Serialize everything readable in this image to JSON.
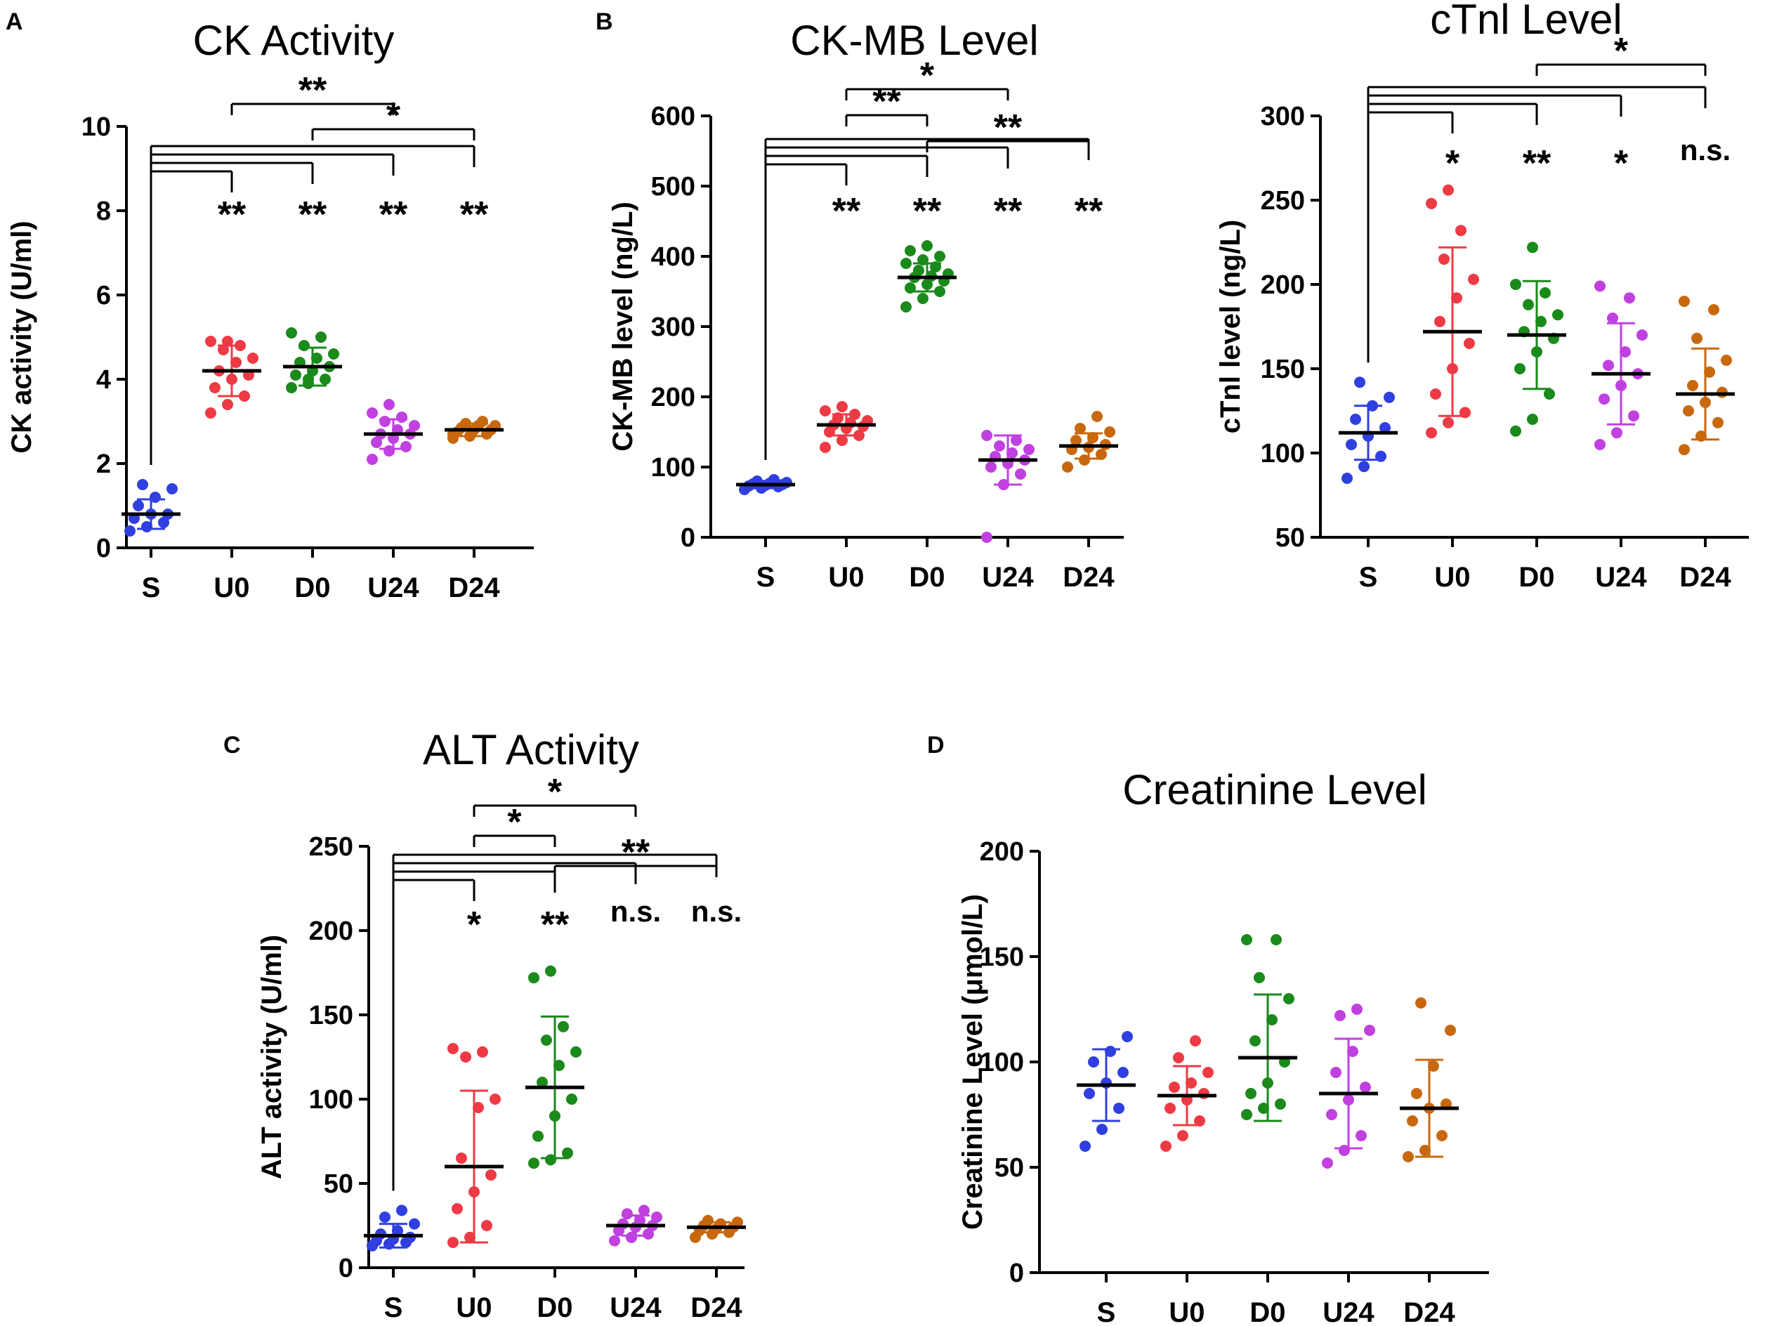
{
  "panel_labels": {
    "A": "A",
    "B": "B",
    "C": "C",
    "D": "D"
  },
  "colors": {
    "S": "#2f3fe0",
    "U0": "#ee3a44",
    "D0": "#1a8a1a",
    "U24": "#c040e0",
    "D24": "#c8680e",
    "axis": "#000000"
  },
  "chart_data": [
    {
      "id": "ck",
      "type": "scatter",
      "title": "CK Activity",
      "xlabel": "",
      "ylabel": "CK activity (U/ml)",
      "ylim": [
        0,
        10
      ],
      "yticks": [
        "0",
        "2",
        "4",
        "6",
        "8",
        "10"
      ],
      "categories": [
        "S",
        "U0",
        "D0",
        "U24",
        "D24"
      ],
      "series": [
        {
          "name": "S",
          "mean": 0.8,
          "sd": 0.35,
          "points": [
            0.4,
            0.5,
            0.6,
            0.7,
            0.8,
            0.8,
            1.0,
            1.2,
            1.4,
            1.5
          ]
        },
        {
          "name": "U0",
          "mean": 4.2,
          "sd": 0.6,
          "points": [
            3.2,
            3.4,
            3.6,
            3.8,
            4.0,
            4.1,
            4.2,
            4.4,
            4.5,
            4.7,
            4.8,
            4.9,
            4.9
          ]
        },
        {
          "name": "D0",
          "mean": 4.3,
          "sd": 0.45,
          "points": [
            3.8,
            3.9,
            4.0,
            4.1,
            4.2,
            4.3,
            4.4,
            4.5,
            4.6,
            4.8,
            5.0,
            5.1,
            4.0
          ]
        },
        {
          "name": "U24",
          "mean": 2.7,
          "sd": 0.35,
          "points": [
            2.1,
            2.3,
            2.4,
            2.5,
            2.6,
            2.7,
            2.7,
            2.8,
            2.9,
            3.0,
            3.1,
            3.2,
            3.4
          ]
        },
        {
          "name": "D24",
          "mean": 2.8,
          "sd": 0.15,
          "points": [
            2.6,
            2.65,
            2.7,
            2.75,
            2.8,
            2.8,
            2.85,
            2.9,
            2.9,
            2.95,
            3.0,
            2.7
          ]
        }
      ],
      "annotations": {
        "vs_S": [
          "**",
          "**",
          "**",
          "**"
        ],
        "brackets": [
          {
            "from": "U0",
            "to": "U24",
            "label": "**"
          },
          {
            "from": "D0",
            "to": "D24",
            "label": "*"
          }
        ]
      }
    },
    {
      "id": "ckmb",
      "type": "scatter",
      "title": "CK-MB Level",
      "xlabel": "",
      "ylabel": "CK-MB level (ng/L)",
      "ylim": [
        0,
        600
      ],
      "yticks": [
        "0",
        "100",
        "200",
        "300",
        "400",
        "500",
        "600"
      ],
      "categories": [
        "S",
        "U0",
        "D0",
        "U24",
        "D24"
      ],
      "series": [
        {
          "name": "S",
          "mean": 75,
          "sd": 5,
          "points": [
            68,
            70,
            72,
            73,
            74,
            75,
            76,
            77,
            78,
            80,
            82
          ]
        },
        {
          "name": "U0",
          "mean": 160,
          "sd": 15,
          "points": [
            128,
            138,
            145,
            150,
            155,
            158,
            160,
            163,
            166,
            170,
            175,
            180,
            186
          ]
        },
        {
          "name": "D0",
          "mean": 370,
          "sd": 20,
          "points": [
            328,
            340,
            350,
            355,
            360,
            365,
            370,
            372,
            375,
            380,
            385,
            390,
            395,
            400,
            408,
            415
          ]
        },
        {
          "name": "U24",
          "mean": 110,
          "sd": 35,
          "points": [
            0,
            75,
            90,
            100,
            105,
            110,
            115,
            120,
            125,
            130,
            138,
            145
          ]
        },
        {
          "name": "D24",
          "mean": 130,
          "sd": 18,
          "points": [
            100,
            110,
            118,
            125,
            128,
            132,
            138,
            142,
            150,
            155,
            172
          ]
        }
      ],
      "annotations": {
        "vs_S": [
          "**",
          "**",
          "**",
          "**"
        ],
        "brackets": [
          {
            "from": "U0",
            "to": "U24",
            "label": "*"
          },
          {
            "from": "U0",
            "to": "D0",
            "label": "**"
          },
          {
            "from": "D0",
            "to": "D24",
            "label": "**"
          }
        ]
      }
    },
    {
      "id": "ctni",
      "type": "scatter",
      "title": "cTnl Level",
      "xlabel": "",
      "ylabel": "cTnl level (ng/L)",
      "ylim": [
        50,
        300
      ],
      "yticks": [
        "50",
        "100",
        "150",
        "200",
        "250",
        "300"
      ],
      "categories": [
        "S",
        "U0",
        "D0",
        "U24",
        "D24"
      ],
      "series": [
        {
          "name": "S",
          "mean": 112,
          "sd": 16,
          "points": [
            85,
            92,
            98,
            105,
            110,
            115,
            120,
            128,
            133,
            142
          ]
        },
        {
          "name": "U0",
          "mean": 172,
          "sd": 50,
          "points": [
            112,
            118,
            124,
            135,
            150,
            165,
            178,
            192,
            203,
            215,
            232,
            248,
            256
          ]
        },
        {
          "name": "D0",
          "mean": 170,
          "sd": 32,
          "points": [
            113,
            120,
            135,
            150,
            160,
            168,
            172,
            178,
            182,
            188,
            195,
            200,
            222
          ]
        },
        {
          "name": "U24",
          "mean": 147,
          "sd": 30,
          "points": [
            105,
            112,
            122,
            132,
            140,
            147,
            152,
            160,
            170,
            180,
            192,
            199
          ]
        },
        {
          "name": "D24",
          "mean": 135,
          "sd": 27,
          "points": [
            102,
            110,
            118,
            125,
            130,
            136,
            140,
            148,
            155,
            168,
            185,
            190
          ]
        }
      ],
      "annotations": {
        "vs_S": [
          "*",
          "**",
          "*",
          "n.s."
        ],
        "brackets": [
          {
            "from": "D0",
            "to": "D24",
            "label": "*"
          }
        ]
      }
    },
    {
      "id": "alt",
      "type": "scatter",
      "title": "ALT Activity",
      "xlabel": "",
      "ylabel": "ALT activity (U/ml)",
      "ylim": [
        0,
        250
      ],
      "yticks": [
        "0",
        "50",
        "100",
        "150",
        "200",
        "250"
      ],
      "categories": [
        "S",
        "U0",
        "D0",
        "U24",
        "D24"
      ],
      "series": [
        {
          "name": "S",
          "mean": 19,
          "sd": 7,
          "points": [
            13,
            14,
            15,
            16,
            17,
            18,
            20,
            22,
            26,
            30,
            34
          ]
        },
        {
          "name": "U0",
          "mean": 60,
          "sd": 45,
          "points": [
            15,
            18,
            25,
            35,
            45,
            55,
            65,
            95,
            100,
            125,
            128,
            130
          ]
        },
        {
          "name": "D0",
          "mean": 107,
          "sd": 42,
          "points": [
            62,
            64,
            68,
            78,
            90,
            100,
            110,
            120,
            128,
            135,
            143,
            172,
            176
          ]
        },
        {
          "name": "U24",
          "mean": 25,
          "sd": 6,
          "points": [
            16,
            18,
            20,
            22,
            24,
            25,
            26,
            28,
            30,
            32,
            34
          ]
        },
        {
          "name": "D24",
          "mean": 24,
          "sd": 3,
          "points": [
            18,
            20,
            21,
            22,
            23,
            24,
            25,
            26,
            27,
            28
          ]
        }
      ],
      "annotations": {
        "vs_S": [
          "*",
          "**",
          "n.s.",
          "n.s."
        ],
        "brackets": [
          {
            "from": "U0",
            "to": "U24",
            "label": "*"
          },
          {
            "from": "U0",
            "to": "D0",
            "label": "*"
          },
          {
            "from": "D0",
            "to": "D24",
            "label": "**"
          }
        ]
      }
    },
    {
      "id": "creat",
      "type": "scatter",
      "title": "Creatinine Level",
      "xlabel": "",
      "ylabel": "Creatinine Level (μmol/L)",
      "ylim": [
        0,
        200
      ],
      "yticks": [
        "0",
        "50",
        "100",
        "150",
        "200"
      ],
      "categories": [
        "S",
        "U0",
        "D0",
        "U24",
        "D24"
      ],
      "series": [
        {
          "name": "S",
          "mean": 89,
          "sd": 17,
          "points": [
            60,
            68,
            78,
            85,
            90,
            95,
            100,
            105,
            112
          ]
        },
        {
          "name": "U0",
          "mean": 84,
          "sd": 14,
          "points": [
            60,
            65,
            72,
            78,
            82,
            85,
            88,
            90,
            95,
            102,
            110
          ]
        },
        {
          "name": "D0",
          "mean": 102,
          "sd": 30,
          "points": [
            75,
            78,
            80,
            85,
            90,
            100,
            110,
            120,
            130,
            140,
            158,
            158
          ]
        },
        {
          "name": "U24",
          "mean": 85,
          "sd": 26,
          "points": [
            52,
            58,
            65,
            75,
            82,
            88,
            95,
            105,
            115,
            122,
            125
          ]
        },
        {
          "name": "D24",
          "mean": 78,
          "sd": 23,
          "points": [
            55,
            58,
            65,
            72,
            78,
            80,
            85,
            98,
            115,
            128
          ]
        }
      ],
      "annotations": {
        "vs_S": [],
        "brackets": []
      }
    }
  ]
}
